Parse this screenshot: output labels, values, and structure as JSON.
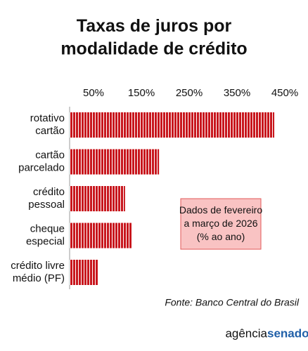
{
  "title": "Taxas de juros por\nmodalidade de crédito",
  "chart_data": {
    "type": "bar",
    "orientation": "horizontal",
    "categories": [
      "rotativo\ncartão",
      "cartão\nparcelado",
      "crédito\npessoal",
      "cheque\nespecial",
      "crédito livre\nmédio (PF)"
    ],
    "values": [
      428,
      187,
      116,
      131,
      60
    ],
    "color": "#c8161d",
    "xlim": [
      0,
      470
    ],
    "xticks": [
      {
        "value": 50,
        "label": "50%"
      },
      {
        "value": 150,
        "label": "150%"
      },
      {
        "value": 250,
        "label": "250%"
      },
      {
        "value": 350,
        "label": "350%"
      },
      {
        "value": 450,
        "label": "450%"
      }
    ],
    "annotation": "Dados de fevereiro\na março de 2026\n(% ao ano)"
  },
  "source": "Fonte: Banco Central do Brasil",
  "logo": {
    "part1": "agência",
    "part2": "senado"
  }
}
